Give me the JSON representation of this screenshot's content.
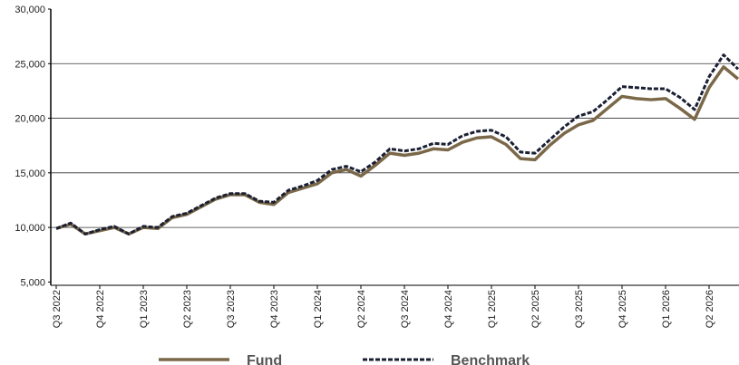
{
  "chart_data": {
    "type": "line",
    "categories": [
      "Q3 2022",
      null,
      null,
      "Q4 2022",
      null,
      null,
      "Q1 2023",
      null,
      null,
      "Q2 2023",
      null,
      null,
      "Q3 2023",
      null,
      null,
      "Q4 2023",
      null,
      null,
      "Q1 2024",
      null,
      null,
      "Q2 2024",
      null,
      null,
      "Q3 2024",
      null,
      null,
      "Q4 2024",
      null,
      null,
      "Q1 2025",
      null,
      null,
      "Q2 2025",
      null,
      null,
      "Q3 2025",
      null,
      null,
      "Q4 2025",
      null,
      null,
      "Q1 2026",
      null,
      null,
      "Q2 2026",
      null,
      null
    ],
    "series": [
      {
        "name": "Fund",
        "color": "#7a6849",
        "dashed": false,
        "values": [
          9900,
          10300,
          9400,
          9700,
          10000,
          9400,
          10000,
          9900,
          10900,
          11200,
          11900,
          12600,
          13000,
          13000,
          12300,
          12100,
          13200,
          13600,
          14000,
          15000,
          15300,
          14700,
          15700,
          16800,
          16600,
          16800,
          17200,
          17100,
          17800,
          18200,
          18300,
          17600,
          16300,
          16200,
          17500,
          18600,
          19400,
          19800,
          20900,
          22000,
          21800,
          21700,
          21800,
          20900,
          19900,
          22800,
          24700,
          23600
        ]
      },
      {
        "name": "Benchmark",
        "color": "#1a1f33",
        "dashed": true,
        "values": [
          9900,
          10400,
          9400,
          9800,
          10100,
          9400,
          10100,
          10000,
          11000,
          11300,
          12000,
          12700,
          13100,
          13100,
          12400,
          12300,
          13400,
          13800,
          14300,
          15300,
          15600,
          15100,
          16000,
          17200,
          17000,
          17200,
          17700,
          17600,
          18400,
          18800,
          18900,
          18300,
          16900,
          16800,
          18000,
          19200,
          20200,
          20600,
          21700,
          22900,
          22800,
          22700,
          22700,
          21900,
          20800,
          23800,
          25800,
          24500
        ]
      }
    ],
    "ylim": [
      4700,
      30000
    ],
    "yticks": [
      {
        "value": 5000,
        "label": "5,000"
      },
      {
        "value": 10000,
        "label": "10,000"
      },
      {
        "value": 15000,
        "label": "15,000"
      },
      {
        "value": 20000,
        "label": "20,000"
      },
      {
        "value": 25000,
        "label": "25,000"
      },
      {
        "value": 30000,
        "label": "30,000"
      }
    ],
    "grid": true,
    "legend": "bottom"
  }
}
